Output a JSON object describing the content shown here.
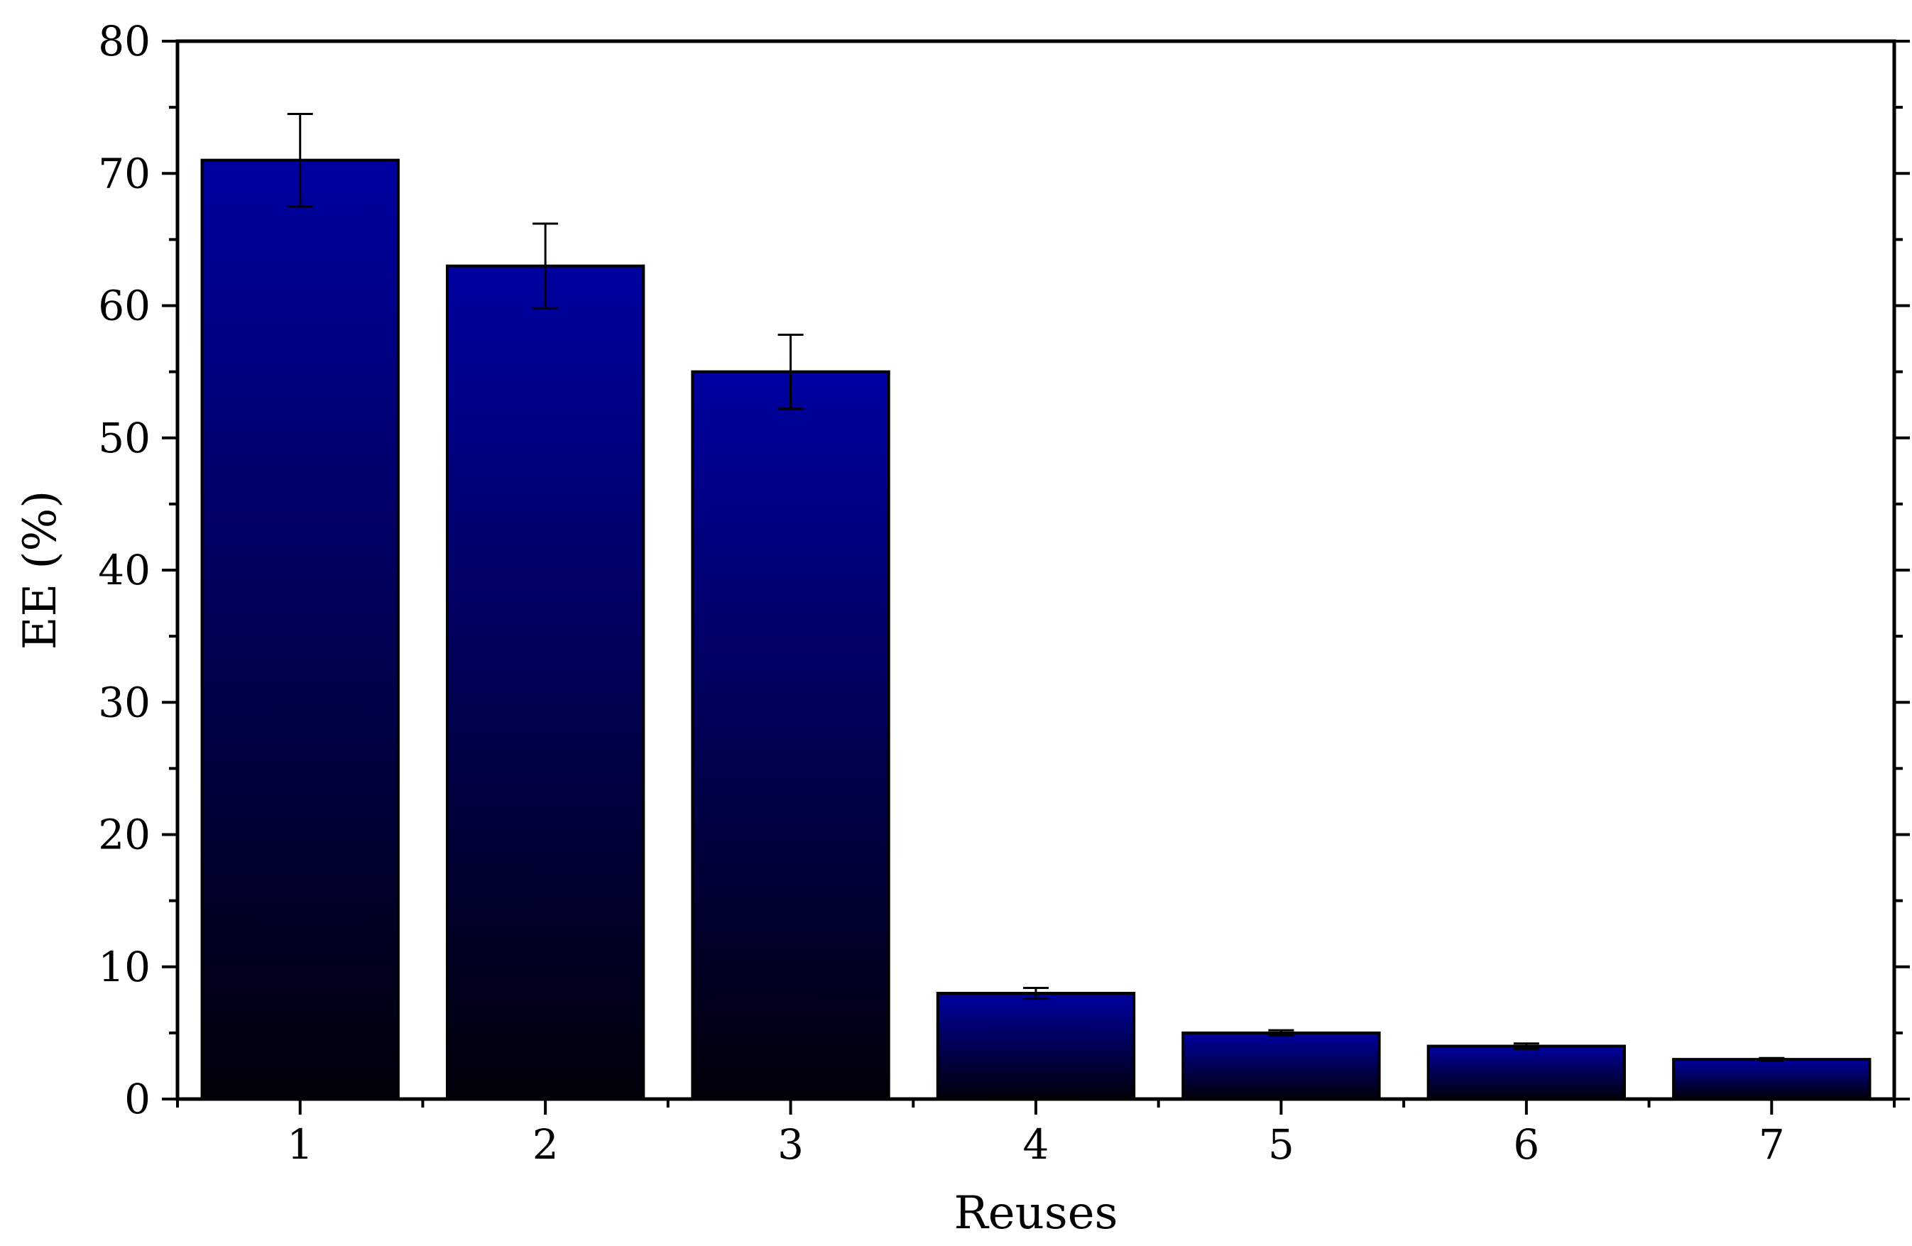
{
  "chart_data": {
    "type": "bar",
    "categories": [
      "1",
      "2",
      "3",
      "4",
      "5",
      "6",
      "7"
    ],
    "values": [
      71,
      63,
      55,
      8,
      5,
      4,
      3
    ],
    "errors": [
      3.5,
      3.2,
      2.8,
      0.4,
      0.2,
      0.2,
      0.1
    ],
    "xlabel": "Reuses",
    "ylabel": "EE (%)",
    "ylim": [
      0,
      80
    ],
    "yticks": [
      "0",
      "10",
      "20",
      "30",
      "40",
      "50",
      "60",
      "70",
      "80"
    ],
    "grid": false,
    "bar_gradient": {
      "top": "#0000a0",
      "bottom": "#000008"
    },
    "legend": "none"
  }
}
